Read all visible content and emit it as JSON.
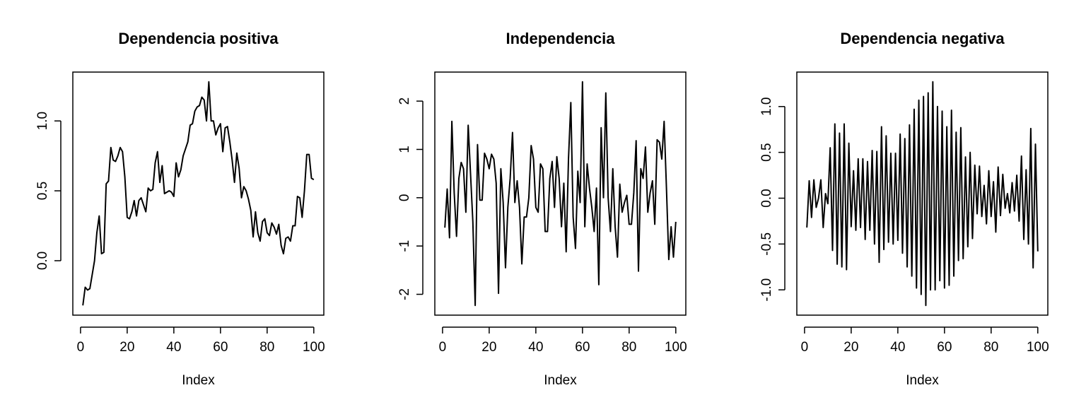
{
  "chart_data": [
    {
      "type": "line",
      "title": "Dependencia positiva",
      "xlabel": "Index",
      "ylabel": "",
      "xlim": [
        1,
        100
      ],
      "ylim": [
        -0.32,
        1.28
      ],
      "xticks": [
        0,
        20,
        40,
        60,
        80,
        100
      ],
      "yticks": [
        0.0,
        0.5,
        1.0
      ],
      "ytick_labels": [
        "0.0",
        "0.5",
        "1.0"
      ],
      "grid": false,
      "series": [
        {
          "values": [
            -0.32,
            -0.19,
            -0.21,
            -0.2,
            -0.1,
            0.0,
            0.2,
            0.32,
            0.05,
            0.06,
            0.55,
            0.57,
            0.81,
            0.72,
            0.71,
            0.75,
            0.81,
            0.78,
            0.6,
            0.31,
            0.3,
            0.35,
            0.43,
            0.32,
            0.43,
            0.45,
            0.4,
            0.35,
            0.52,
            0.5,
            0.51,
            0.7,
            0.78,
            0.56,
            0.68,
            0.48,
            0.49,
            0.5,
            0.49,
            0.46,
            0.7,
            0.6,
            0.65,
            0.75,
            0.8,
            0.85,
            0.97,
            0.98,
            1.07,
            1.1,
            1.11,
            1.17,
            1.15,
            1.0,
            1.28,
            1.0,
            1.0,
            0.9,
            0.95,
            0.98,
            0.78,
            0.95,
            0.96,
            0.85,
            0.72,
            0.56,
            0.77,
            0.66,
            0.45,
            0.53,
            0.5,
            0.44,
            0.36,
            0.17,
            0.35,
            0.2,
            0.14,
            0.28,
            0.3,
            0.2,
            0.18,
            0.27,
            0.24,
            0.19,
            0.26,
            0.11,
            0.05,
            0.16,
            0.17,
            0.14,
            0.25,
            0.25,
            0.46,
            0.45,
            0.31,
            0.5,
            0.76,
            0.76,
            0.59,
            0.58
          ]
        }
      ]
    },
    {
      "type": "line",
      "title": "Independencia",
      "xlabel": "Index",
      "ylabel": "",
      "xlim": [
        1,
        100
      ],
      "ylim": [
        -2.23,
        2.4
      ],
      "xticks": [
        0,
        20,
        40,
        60,
        80,
        100
      ],
      "yticks": [
        -2,
        -1,
        0,
        1,
        2
      ],
      "ytick_labels": [
        "-2",
        "-1",
        "0",
        "1",
        "2"
      ],
      "grid": false,
      "series": [
        {
          "values": [
            -0.62,
            0.18,
            -0.83,
            1.58,
            0.1,
            -0.8,
            0.4,
            0.73,
            0.6,
            -0.3,
            1.5,
            0.5,
            -0.5,
            -2.23,
            1.1,
            -0.05,
            -0.05,
            0.92,
            0.8,
            0.6,
            0.9,
            0.8,
            0.3,
            -1.98,
            0.6,
            -0.1,
            -1.45,
            -0.2,
            0.4,
            1.35,
            -0.1,
            0.35,
            -0.2,
            -1.37,
            -0.4,
            -0.4,
            0.0,
            1.08,
            0.8,
            -0.2,
            -0.3,
            0.7,
            0.6,
            -0.7,
            -0.7,
            0.4,
            0.75,
            -0.2,
            0.85,
            0.4,
            -0.6,
            0.3,
            -1.12,
            0.8,
            1.97,
            -0.4,
            -1.05,
            0.55,
            -0.1,
            2.4,
            -0.6,
            0.7,
            0.2,
            -0.2,
            -0.7,
            0.2,
            -1.8,
            1.45,
            0.0,
            2.17,
            0.0,
            -0.7,
            0.6,
            -0.6,
            -1.23,
            0.28,
            -0.3,
            -0.1,
            0.05,
            -0.55,
            -0.55,
            0.1,
            1.18,
            -1.52,
            0.6,
            0.4,
            1.05,
            -0.3,
            0.1,
            0.35,
            -0.55,
            1.2,
            1.15,
            0.8,
            1.58,
            0.2,
            -1.28,
            -0.6,
            -1.23,
            -0.5
          ]
        }
      ]
    },
    {
      "type": "line",
      "title": "Dependencia negativa",
      "xlabel": "Index",
      "ylabel": "",
      "xlim": [
        1,
        100
      ],
      "ylim": [
        -1.17,
        1.27
      ],
      "xticks": [
        0,
        20,
        40,
        60,
        80,
        100
      ],
      "yticks": [
        -1.0,
        -0.5,
        0.0,
        0.5,
        1.0
      ],
      "ytick_labels": [
        "-1.0",
        "-0.5",
        "0.0",
        "0.5",
        "1.0"
      ],
      "grid": false,
      "series": [
        {
          "values": [
            -0.32,
            0.19,
            -0.21,
            0.2,
            -0.1,
            0.0,
            0.2,
            -0.32,
            0.05,
            -0.06,
            0.55,
            -0.57,
            0.81,
            -0.72,
            0.71,
            -0.75,
            0.81,
            -0.78,
            0.6,
            -0.31,
            0.3,
            -0.35,
            0.43,
            -0.32,
            0.43,
            -0.45,
            0.4,
            -0.35,
            0.52,
            -0.5,
            0.51,
            -0.7,
            0.78,
            -0.56,
            0.68,
            -0.48,
            0.49,
            -0.5,
            0.49,
            -0.46,
            0.7,
            -0.6,
            0.65,
            -0.75,
            0.8,
            -0.85,
            0.97,
            -0.98,
            1.07,
            -1.05,
            1.11,
            -1.17,
            1.15,
            -1.0,
            1.27,
            -1.0,
            1.0,
            -0.9,
            0.95,
            -0.98,
            0.78,
            -0.95,
            0.96,
            -0.85,
            0.72,
            -0.68,
            0.77,
            -0.66,
            0.45,
            -0.53,
            0.5,
            -0.44,
            0.36,
            -0.17,
            0.35,
            -0.2,
            0.14,
            -0.28,
            0.3,
            -0.2,
            0.18,
            -0.37,
            0.34,
            -0.19,
            0.26,
            -0.11,
            0.05,
            -0.16,
            0.17,
            -0.14,
            0.25,
            -0.25,
            0.46,
            -0.45,
            0.31,
            -0.5,
            0.76,
            -0.76,
            0.59,
            -0.58
          ]
        }
      ]
    }
  ]
}
